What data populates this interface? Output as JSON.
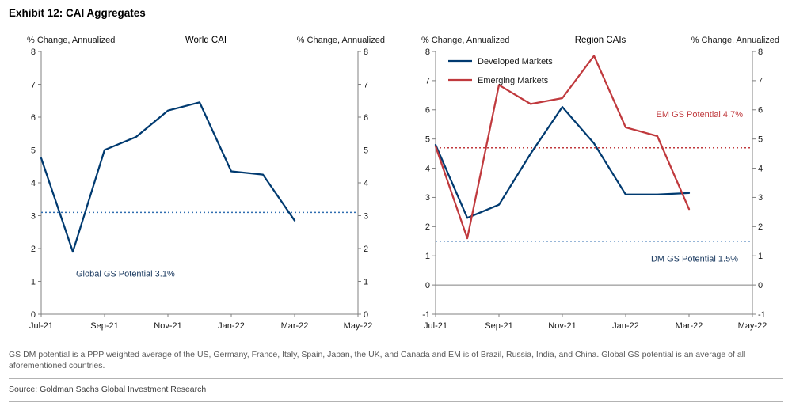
{
  "header": {
    "title": "Exhibit 12: CAI Aggregates"
  },
  "footer": {
    "footnote": "GS DM potential is a PPP weighted average of the US, Germany, France, Italy, Spain, Japan, the UK, and Canada and EM is of Brazil, Russia, India, and China. Global GS potential is an average of all aforementioned countries.",
    "source": "Source: Goldman Sachs Global Investment Research"
  },
  "colors": {
    "axis": "#808080",
    "dm_navy": "#003a70",
    "em_red": "#c0393d",
    "ref_blue": "#2f6db0",
    "navy_label": "#17375e"
  },
  "chart_data": [
    {
      "type": "line",
      "title": "World CAI",
      "ylabel_left": "% Change, Annualized",
      "ylabel_right": "% Change, Annualized",
      "ylim": [
        0,
        8
      ],
      "grid": false,
      "x_categories": [
        "Jul-21",
        "Aug-21",
        "Sep-21",
        "Oct-21",
        "Nov-21",
        "Dec-21",
        "Jan-22",
        "Feb-22",
        "Mar-22"
      ],
      "x_index_max": 10,
      "x_ticks": [
        "Jul-21",
        "Sep-21",
        "Nov-21",
        "Jan-22",
        "Mar-22",
        "May-22"
      ],
      "x_tick_indices": [
        0,
        2,
        4,
        6,
        8,
        10
      ],
      "series": [
        {
          "name": "World CAI",
          "color": "#003a70",
          "values": [
            4.75,
            1.9,
            5.0,
            5.4,
            6.2,
            6.45,
            4.35,
            4.25,
            2.85
          ]
        }
      ],
      "reference_lines": [
        {
          "label": "Global GS Potential 3.1%",
          "value": 3.1,
          "color": "#2f6db0",
          "label_color": "#17375e",
          "label_anchor": "start",
          "label_xf": 0.11,
          "label_y_value": 1.15
        }
      ]
    },
    {
      "type": "line",
      "title": "Region CAIs",
      "ylabel_left": "% Change, Annualized",
      "ylabel_right": "% Change, Annualized",
      "ylim": [
        -1,
        8
      ],
      "grid": false,
      "legend": {
        "xf": 0.04,
        "y": 12,
        "row_gap": 24,
        "position": "top-left"
      },
      "x_categories": [
        "Jul-21",
        "Aug-21",
        "Sep-21",
        "Oct-21",
        "Nov-21",
        "Dec-21",
        "Jan-22",
        "Feb-22",
        "Mar-22"
      ],
      "x_index_max": 10,
      "x_ticks": [
        "Jul-21",
        "Sep-21",
        "Nov-21",
        "Jan-22",
        "Mar-22",
        "May-22"
      ],
      "x_tick_indices": [
        0,
        2,
        4,
        6,
        8,
        10
      ],
      "series": [
        {
          "name": "Developed Markets",
          "color": "#003a70",
          "values": [
            4.8,
            2.3,
            2.75,
            4.5,
            6.1,
            4.85,
            3.1,
            3.1,
            3.15
          ]
        },
        {
          "name": "Emerging Markets",
          "color": "#c0393d",
          "values": [
            4.75,
            1.6,
            6.85,
            6.2,
            6.4,
            7.85,
            5.4,
            5.1,
            2.6
          ]
        }
      ],
      "reference_lines": [
        {
          "label": "EM GS Potential 4.7%",
          "value": 4.7,
          "color": "#c0393d",
          "label_color": "#c0393d",
          "label_anchor": "end",
          "label_xf": 0.97,
          "label_y_value": 5.75
        },
        {
          "label": "DM GS Potential 1.5%",
          "value": 1.5,
          "color": "#2f6db0",
          "label_color": "#17375e",
          "label_anchor": "end",
          "label_xf": 0.955,
          "label_y_value": 0.8
        }
      ]
    }
  ]
}
